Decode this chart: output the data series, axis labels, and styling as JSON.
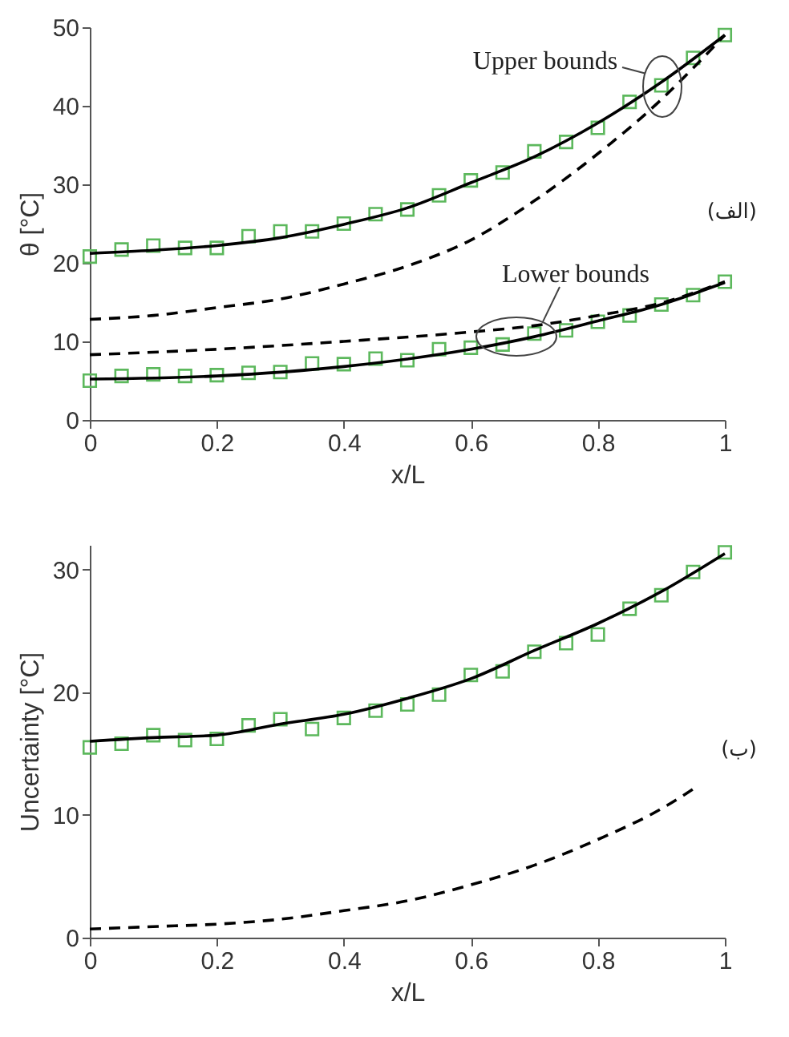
{
  "chart_data": [
    {
      "type": "line",
      "xlabel": "x/L",
      "ylabel": "θ [°C]",
      "xlim": [
        0,
        1
      ],
      "xticks": [
        0,
        0.2,
        0.4,
        0.6,
        0.8,
        1
      ],
      "ylim": [
        0,
        50
      ],
      "yticks": [
        0,
        10,
        20,
        30,
        40,
        50
      ],
      "series": [
        {
          "type": "scatter",
          "marker": "square",
          "color": "#5cb85c",
          "x": [
            0,
            0.05,
            0.1,
            0.15,
            0.2,
            0.25,
            0.3,
            0.35,
            0.4,
            0.45,
            0.5,
            0.55,
            0.6,
            0.65,
            0.7,
            0.75,
            0.8,
            0.85,
            0.9,
            0.95,
            1
          ],
          "values": [
            20.8,
            21.7,
            22.2,
            21.9,
            21.9,
            23.4,
            24.0,
            24.0,
            25.0,
            26.2,
            26.8,
            28.6,
            30.5,
            31.5,
            34.2,
            35.4,
            37.2,
            40.5,
            42.6,
            46.1,
            49.0
          ]
        },
        {
          "type": "scatter",
          "marker": "square",
          "color": "#5cb85c",
          "x": [
            0,
            0.05,
            0.1,
            0.15,
            0.2,
            0.25,
            0.3,
            0.35,
            0.4,
            0.45,
            0.5,
            0.55,
            0.6,
            0.65,
            0.7,
            0.75,
            0.8,
            0.85,
            0.9,
            0.95,
            1
          ],
          "values": [
            5.0,
            5.6,
            5.8,
            5.6,
            5.7,
            6.0,
            6.1,
            7.2,
            7.1,
            7.8,
            7.6,
            9.0,
            9.2,
            9.6,
            11.0,
            11.4,
            12.5,
            13.3,
            14.7,
            15.9,
            17.6
          ]
        },
        {
          "type": "line",
          "line_style": "solid",
          "color": "#000000",
          "x": [
            0,
            0.1,
            0.2,
            0.3,
            0.4,
            0.5,
            0.6,
            0.7,
            0.8,
            0.9,
            1
          ],
          "values": [
            21.2,
            21.6,
            22.2,
            23.2,
            24.9,
            27.0,
            30.2,
            33.5,
            37.8,
            43.0,
            49.0
          ]
        },
        {
          "type": "line",
          "line_style": "dashed",
          "color": "#000000",
          "x": [
            0,
            0.1,
            0.2,
            0.3,
            0.4,
            0.5,
            0.6,
            0.7,
            0.8,
            0.9,
            0.95,
            1
          ],
          "values": [
            12.8,
            13.3,
            14.3,
            15.4,
            17.3,
            19.6,
            22.9,
            27.9,
            33.9,
            40.8,
            44.8,
            49.0
          ]
        },
        {
          "type": "line",
          "line_style": "dashed",
          "color": "#000000",
          "x": [
            0,
            0.2,
            0.4,
            0.6,
            0.7,
            0.8,
            0.9,
            1
          ],
          "values": [
            8.3,
            9.0,
            10.0,
            11.2,
            12.0,
            13.3,
            14.9,
            17.6
          ]
        },
        {
          "type": "line",
          "line_style": "solid",
          "color": "#000000",
          "x": [
            0,
            0.2,
            0.4,
            0.6,
            0.7,
            0.8,
            0.9,
            1
          ],
          "values": [
            5.2,
            5.6,
            6.8,
            9.0,
            10.6,
            12.6,
            14.7,
            17.5
          ]
        }
      ],
      "annotations": [
        "Upper bounds",
        "Lower bounds",
        "(الف)"
      ]
    },
    {
      "type": "line",
      "xlabel": "x/L",
      "ylabel": "Uncertainty [°C]",
      "xlim": [
        0,
        1
      ],
      "xticks": [
        0,
        0.2,
        0.4,
        0.6,
        0.8,
        1
      ],
      "ylim": [
        0,
        32
      ],
      "yticks": [
        0,
        10,
        20,
        30
      ],
      "series": [
        {
          "type": "scatter",
          "marker": "square",
          "color": "#5cb85c",
          "x": [
            0,
            0.05,
            0.1,
            0.15,
            0.2,
            0.25,
            0.3,
            0.35,
            0.4,
            0.45,
            0.5,
            0.55,
            0.6,
            0.65,
            0.7,
            0.75,
            0.8,
            0.85,
            0.9,
            0.95,
            1
          ],
          "values": [
            15.5,
            15.8,
            16.5,
            16.1,
            16.2,
            17.3,
            17.8,
            17.0,
            17.9,
            18.5,
            19.0,
            19.8,
            21.4,
            21.7,
            23.3,
            24.0,
            24.7,
            26.8,
            27.9,
            29.8,
            31.4
          ]
        },
        {
          "type": "line",
          "line_style": "solid",
          "color": "#000000",
          "x": [
            0,
            0.1,
            0.2,
            0.3,
            0.4,
            0.5,
            0.6,
            0.7,
            0.8,
            0.9,
            1
          ],
          "values": [
            16.0,
            16.3,
            16.5,
            17.4,
            18.2,
            19.5,
            21.1,
            23.4,
            25.6,
            28.2,
            31.3
          ]
        },
        {
          "type": "line",
          "line_style": "dashed",
          "color": "#000000",
          "x": [
            0,
            0.1,
            0.2,
            0.3,
            0.4,
            0.5,
            0.6,
            0.7,
            0.8,
            0.9,
            0.95
          ],
          "values": [
            0.7,
            0.9,
            1.1,
            1.5,
            2.2,
            3.0,
            4.3,
            5.9,
            8.0,
            10.5,
            12.1
          ]
        }
      ],
      "annotations": [
        "(ب)"
      ]
    }
  ]
}
